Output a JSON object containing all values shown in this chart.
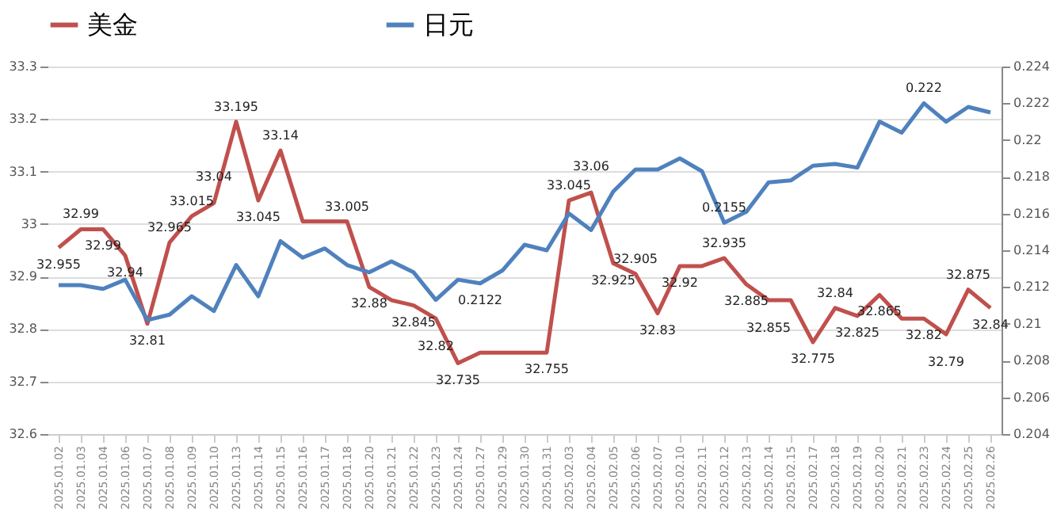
{
  "chart_data": {
    "type": "line",
    "categories": [
      "2025.01.02",
      "2025.01.03",
      "2025.01.04",
      "2025.01.06",
      "2025.01.07",
      "2025.01.08",
      "2025.01.09",
      "2025.01.10",
      "2025.01.13",
      "2025.01.14",
      "2025.01.15",
      "2025.01.16",
      "2025.01.17",
      "2025.01.18",
      "2025.01.20",
      "2025.01.21",
      "2025.01.22",
      "2025.01.23",
      "2025.01.24",
      "2025.01.27",
      "2025.01.29",
      "2025.01.30",
      "2025.01.31",
      "2025.02.03",
      "2025.02.04",
      "2025.02.05",
      "2025.02.06",
      "2025.02.07",
      "2025.02.10",
      "2025.02.11",
      "2025.02.12",
      "2025.02.13",
      "2025.02.14",
      "2025.02.15",
      "2025.02.17",
      "2025.02.18",
      "2025.02.19",
      "2025.02.20",
      "2025.02.21",
      "2025.02.23",
      "2025.02.24",
      "2025.02.25",
      "2025.02.26"
    ],
    "series": [
      {
        "name": "美金",
        "color": "#c0504d",
        "values": [
          32.955,
          32.99,
          32.99,
          32.94,
          32.81,
          32.965,
          33.015,
          33.04,
          33.195,
          33.045,
          33.14,
          33.005,
          33.005,
          33.005,
          32.88,
          32.855,
          32.845,
          32.82,
          32.735,
          32.755,
          32.755,
          32.755,
          32.755,
          33.045,
          33.06,
          32.925,
          32.905,
          32.83,
          32.92,
          32.92,
          32.935,
          32.885,
          32.855,
          32.855,
          32.775,
          32.84,
          32.825,
          32.865,
          32.82,
          32.82,
          32.79,
          32.875,
          32.84
        ],
        "value_labels": [
          "32.955",
          "32.99",
          "32.99",
          "32.94",
          "32.81",
          "32.965",
          "33.015",
          "33.04",
          "33.195",
          "33.045",
          "33.14",
          null,
          null,
          "33.005",
          "32.88",
          null,
          "32.845",
          "32.82",
          "32.735",
          null,
          null,
          null,
          "32.755",
          "33.045",
          "33.06",
          "32.925",
          "32.905",
          "32.83",
          "32.92",
          null,
          "32.935",
          "32.885",
          "32.855",
          null,
          "32.775",
          "32.84",
          "32.825",
          "32.865",
          null,
          "32.82",
          "32.79",
          "32.875",
          "32.84"
        ]
      },
      {
        "name": "日元",
        "color": "#4f81bd",
        "axis": "y2",
        "values": [
          0.2121,
          0.2121,
          0.2119,
          0.2124,
          0.2102,
          0.2105,
          0.2115,
          0.2107,
          0.2132,
          0.2115,
          0.2145,
          0.2136,
          0.2141,
          0.2132,
          0.2128,
          0.2134,
          0.2128,
          0.2113,
          0.2124,
          0.2122,
          0.2129,
          0.2143,
          0.214,
          0.216,
          0.2151,
          0.2172,
          0.2184,
          0.2184,
          0.219,
          0.2183,
          0.2155,
          0.2161,
          0.2177,
          0.2178,
          0.2186,
          0.2187,
          0.2185,
          0.221,
          0.2204,
          0.222,
          0.221,
          0.2218,
          0.2215
        ],
        "value_labels": [
          null,
          null,
          null,
          null,
          null,
          null,
          null,
          null,
          null,
          null,
          null,
          null,
          null,
          null,
          null,
          null,
          null,
          null,
          null,
          "0.2122",
          null,
          null,
          null,
          null,
          null,
          null,
          null,
          null,
          null,
          null,
          "0.2155",
          null,
          null,
          null,
          null,
          null,
          null,
          null,
          null,
          "0.222",
          null,
          null,
          null
        ]
      }
    ],
    "ylim": [
      32.6,
      33.3
    ],
    "yticks": [
      32.6,
      32.7,
      32.8,
      32.9,
      33,
      33.1,
      33.2,
      33.3
    ],
    "y2lim": [
      0.204,
      0.224
    ],
    "y2ticks": [
      0.204,
      0.206,
      0.208,
      0.21,
      0.212,
      0.214,
      0.216,
      0.218,
      0.22,
      0.222,
      0.224
    ],
    "grid": "y",
    "legend": "top",
    "marker": "none",
    "line_style": "solid"
  }
}
